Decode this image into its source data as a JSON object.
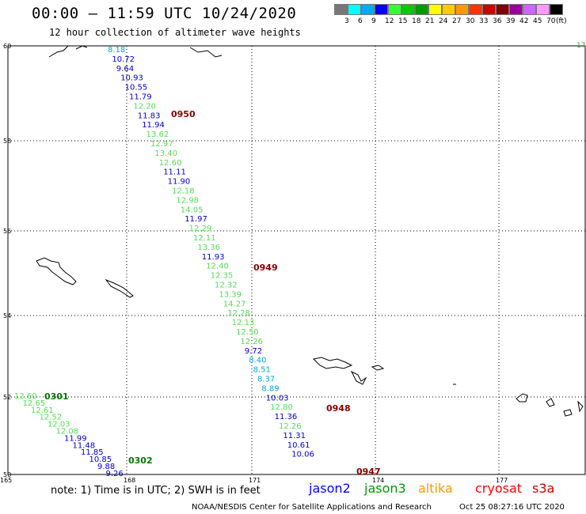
{
  "header": {
    "title": "00:00 – 11:59 UTC 10/24/2020",
    "subtitle": "12 hour collection of altimeter wave heights"
  },
  "legend": {
    "colors": [
      "#777777",
      "#00ffff",
      "#00aaff",
      "#0000ff",
      "#33ff33",
      "#00cc00",
      "#009900",
      "#ffff00",
      "#ffcc00",
      "#ff9900",
      "#ff3300",
      "#cc0000",
      "#800000",
      "#990099",
      "#cc66ff",
      "#ff99ff",
      "#000000"
    ],
    "labels": [
      "3",
      "6",
      "9",
      "12",
      "15",
      "18",
      "21",
      "24",
      "27",
      "30",
      "33",
      "36",
      "39",
      "42",
      "45",
      "70",
      "(ft)"
    ]
  },
  "axes": {
    "lat_labels": [
      "60",
      "58",
      "56",
      "54",
      "52",
      "50"
    ],
    "lon_labels": [
      "165",
      "168",
      "171",
      "174",
      "177"
    ],
    "right_label": "17"
  },
  "tracks": [
    {
      "color": "#55dd55",
      "readings": [
        "12.60",
        "12.65",
        "12.61",
        "12.52",
        "12.03",
        "12.08"
      ]
    },
    {
      "color": "#0000cc",
      "readings": [
        "11.99",
        "11.48",
        "11.85",
        "10.85",
        "9.88",
        "9.26"
      ]
    },
    {
      "color": "#00aadd",
      "readings": [
        "8.18"
      ]
    },
    {
      "color": "#0000cc",
      "readings": [
        "10.72",
        "9.64",
        "10.93",
        "10.55",
        "11.79"
      ]
    },
    {
      "color": "#55dd55",
      "readings": [
        "12.20"
      ]
    },
    {
      "color": "#0000cc",
      "readings": [
        "11.83",
        "11.94"
      ]
    },
    {
      "color": "#55dd55",
      "readings": [
        "13.62",
        "12.97",
        "13.40",
        "12.60"
      ]
    },
    {
      "color": "#0000cc",
      "readings": [
        "11.11",
        "11.90"
      ]
    },
    {
      "color": "#55dd55",
      "readings": [
        "12.18",
        "12.98",
        "14.05"
      ]
    },
    {
      "color": "#0000cc",
      "readings": [
        "11.97"
      ]
    },
    {
      "color": "#55dd55",
      "readings": [
        "12.29",
        "12.11",
        "13.36"
      ]
    },
    {
      "color": "#0000cc",
      "readings": [
        "11.93"
      ]
    },
    {
      "color": "#55dd55",
      "readings": [
        "12.40",
        "12.35",
        "12.32",
        "13.39",
        "14.27",
        "12.28",
        "12.13",
        "12.50",
        "12.26"
      ]
    },
    {
      "color": "#0000cc",
      "readings": [
        "9.72"
      ]
    },
    {
      "color": "#00aadd",
      "readings": [
        "8.40",
        "8.51",
        "8.37",
        "8.89"
      ]
    },
    {
      "color": "#0000cc",
      "readings": [
        "10.03"
      ]
    },
    {
      "color": "#55dd55",
      "readings": [
        "12.80"
      ]
    },
    {
      "color": "#0000cc",
      "readings": [
        "11.36"
      ]
    },
    {
      "color": "#55dd55",
      "readings": [
        "12.26"
      ]
    },
    {
      "color": "#0000cc",
      "readings": [
        "11.31",
        "10.61",
        "10.06"
      ]
    }
  ],
  "time_labels": [
    {
      "text": "0301",
      "color": "#007700"
    },
    {
      "text": "0302",
      "color": "#007700"
    },
    {
      "text": "0950",
      "color": "#880000"
    },
    {
      "text": "0949",
      "color": "#880000"
    },
    {
      "text": "0948",
      "color": "#880000"
    },
    {
      "text": "0947",
      "color": "#880000"
    }
  ],
  "footer": {
    "note": "note:  1) Time is in UTC;  2) SWH is in feet",
    "satellites": [
      {
        "name": "jason2",
        "color": "#0000ff"
      },
      {
        "name": "jason3",
        "color": "#009900"
      },
      {
        "name": "altika",
        "color": "#ff9900"
      },
      {
        "name": "cryosat",
        "color": "#ff0000"
      },
      {
        "name": "s3a",
        "color": "#cc0000"
      }
    ],
    "credit": "NOAA/NESDIS Center for Satellite Applications and Research",
    "timestamp": "Oct 25 08:27:16 UTC 2020"
  }
}
